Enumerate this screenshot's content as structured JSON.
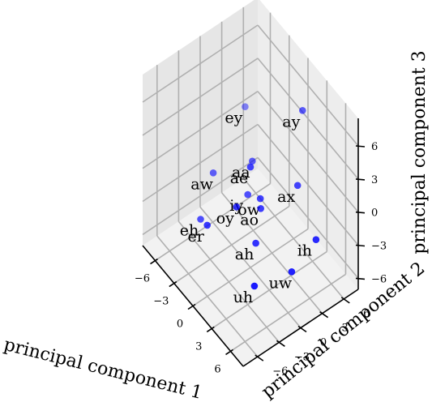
{
  "chart_data": {
    "type": "scatter3d",
    "title": "",
    "xlabel": "principal component 1",
    "ylabel": "principal component 2",
    "zlabel": "principal component 3",
    "x_ticks": [
      "−6",
      "−3",
      "0",
      "3",
      "6"
    ],
    "y_ticks": [
      "−6",
      "−3",
      "0",
      "3",
      "6"
    ],
    "z_ticks": [
      "−6",
      "−3",
      "0",
      "3",
      "6"
    ],
    "xlim": [
      -8,
      8
    ],
    "ylim": [
      -8,
      8
    ],
    "zlim": [
      -7,
      8.5
    ],
    "grid": true,
    "marker_color": "#0000ff",
    "points": [
      {
        "label": "ay",
        "x": 2.0,
        "y": 5.5,
        "z": 6.2
      },
      {
        "label": "ey",
        "x": -6.0,
        "y": 4.5,
        "z": 1.5
      },
      {
        "label": "ae",
        "x": 0.0,
        "y": 0.0,
        "z": 2.1
      },
      {
        "label": "ax",
        "x": 3.5,
        "y": 3.5,
        "z": 1.3
      },
      {
        "label": "aa",
        "x": -2.0,
        "y": 2.0,
        "z": 0.4
      },
      {
        "label": "ow",
        "x": 1.0,
        "y": 0.5,
        "z": -0.3
      },
      {
        "label": "ao",
        "x": 1.3,
        "y": 0.3,
        "z": -0.9
      },
      {
        "label": "iy",
        "x": -1.0,
        "y": 0.5,
        "z": -1.3
      },
      {
        "label": "ih",
        "x": 7.0,
        "y": 3.0,
        "z": -1.0
      },
      {
        "label": "oy",
        "x": -0.5,
        "y": -1.5,
        "z": -1.2
      },
      {
        "label": "uw",
        "x": 6.0,
        "y": 0.5,
        "z": -3.5
      },
      {
        "label": "aw",
        "x": -5.0,
        "y": -0.8,
        "z": -1.5
      },
      {
        "label": "ah",
        "x": 2.0,
        "y": -1.0,
        "z": -3.0
      },
      {
        "label": "er",
        "x": -2.3,
        "y": -4.0,
        "z": -3.0
      },
      {
        "label": "eh",
        "x": -4.5,
        "y": -3.0,
        "z": -4.4
      },
      {
        "label": "uh",
        "x": 3.5,
        "y": -2.5,
        "z": -5.2
      }
    ]
  }
}
